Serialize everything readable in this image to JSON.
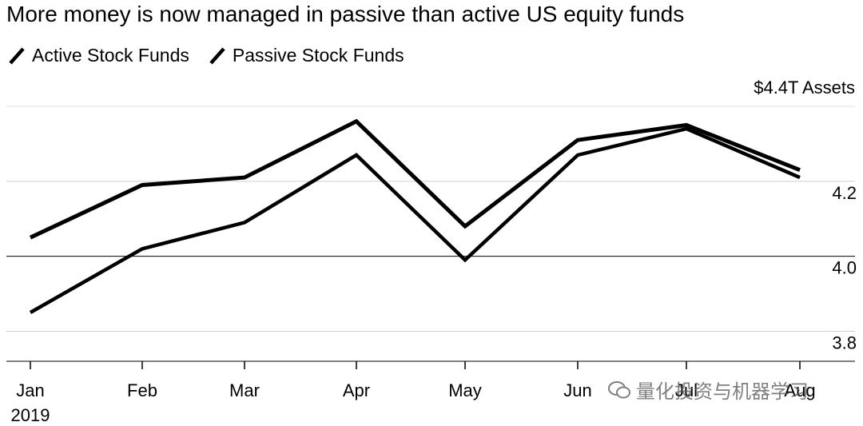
{
  "chart_data": {
    "type": "line",
    "title": "More money is now managed in passive than active US equity funds",
    "categories": [
      "Jan",
      "Feb",
      "Mar",
      "Apr",
      "May",
      "Jun",
      "Jul",
      "Aug"
    ],
    "year_label": "2019",
    "series": [
      {
        "name": "Active Stock Funds",
        "values": [
          4.05,
          4.19,
          4.21,
          4.36,
          4.08,
          4.31,
          4.35,
          4.23
        ]
      },
      {
        "name": "Passive Stock Funds",
        "values": [
          3.85,
          4.02,
          4.09,
          4.27,
          3.99,
          4.27,
          4.34,
          4.21
        ]
      }
    ],
    "y_label": "$4.4T Assets",
    "y_ticks": [
      "4.2",
      "4.0",
      "3.8"
    ],
    "ylim": [
      3.72,
      4.4
    ],
    "grid": "horizontal",
    "legend_position": "top-left",
    "line_color": "#000000"
  },
  "watermark": {
    "text": "量化投资与机器学习",
    "icon": "wechat-icon"
  }
}
